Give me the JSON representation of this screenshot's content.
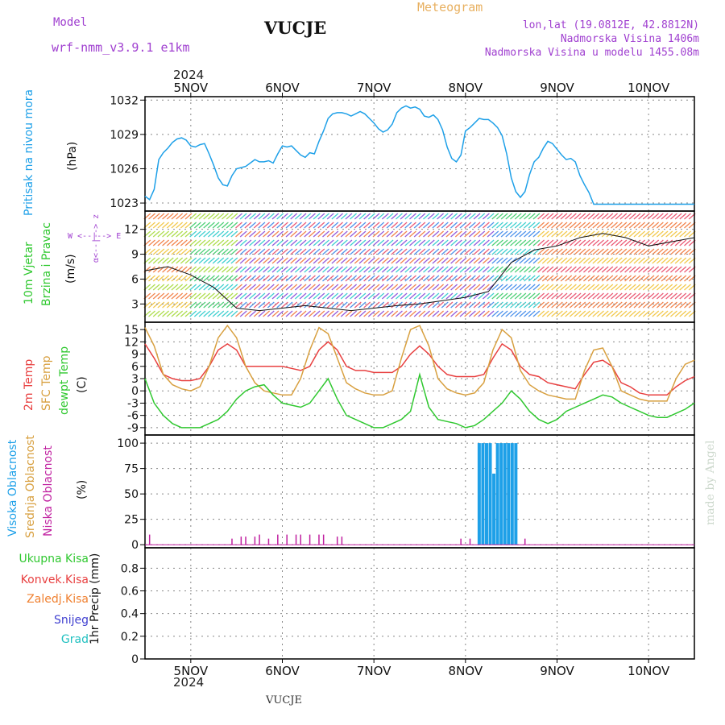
{
  "header": {
    "meteogram": "Meteogram",
    "model_label": "Model",
    "model_name": "wrf-nmm_v3.9.1  e1km",
    "station": "VUCJE",
    "lonlat": "lon,lat (19.0812E, 42.8812N)",
    "elevation": "Nadmorska Visina 1406m",
    "model_elevation": "Nadmorska Visina u modelu 1455.08m",
    "year": "2024",
    "credit": "made by Angel",
    "footer_station": "VUCJE"
  },
  "x_ticks": [
    "5NOV",
    "6NOV",
    "7NOV",
    "8NOV",
    "9NOV",
    "10NOV"
  ],
  "axis_labels": {
    "pressure_title": "Pritisak na nivou mora",
    "pressure_unit": "(hPa)",
    "wind_title1": "10m Vjetar",
    "wind_title2": "Brzina i Pravac",
    "wind_unit": "(m/s)",
    "compass_ns": "α<--|--> z",
    "compass_we": "W <--|--> E",
    "temp_t2": "2m Temp",
    "temp_sfc": "SFC Temp",
    "temp_dew": "dewpt Temp",
    "temp_unit": "(C)",
    "cloud_high": "Visoka Oblacnost",
    "cloud_mid": "Srednja Oblacnost",
    "cloud_low": "Niska Oblacnost",
    "cloud_unit": "(%)",
    "precip_label": "1hr Precip (mm)"
  },
  "precip_legend": [
    "Ukupna Kisa",
    "Konvek.Kisa",
    "Zaledj.Kisa",
    "Snijeg",
    "Grad"
  ],
  "colors": {
    "pressure": "#1ea0e8",
    "t2": "#e84040",
    "sfc": "#d8a040",
    "dew": "#30c830",
    "cloud_high": "#1ea0e8",
    "cloud_low": "#c020a0",
    "purple": "#a040d0",
    "legend": [
      "#30c830",
      "#e84040",
      "#f08030",
      "#4040d0",
      "#20c0c0"
    ]
  },
  "chart_data": [
    {
      "type": "line",
      "panel": "pressure",
      "ylabel": "(hPa)",
      "yticks": [
        1023,
        1026,
        1029,
        1032
      ],
      "ylim": [
        1022.3,
        1032.3
      ],
      "xlim": [
        -0.5,
        5.5
      ],
      "series": [
        {
          "key": "pressure",
          "x": [
            -0.5,
            -0.45,
            -0.4,
            -0.35,
            -0.3,
            -0.25,
            -0.2,
            -0.15,
            -0.1,
            -0.05,
            0.0,
            0.05,
            0.1,
            0.15,
            0.2,
            0.25,
            0.3,
            0.35,
            0.4,
            0.45,
            0.5,
            0.55,
            0.6,
            0.65,
            0.7,
            0.75,
            0.8,
            0.85,
            0.9,
            0.95,
            1.0,
            1.05,
            1.1,
            1.15,
            1.2,
            1.25,
            1.3,
            1.35,
            1.4,
            1.45,
            1.5,
            1.55,
            1.6,
            1.65,
            1.7,
            1.75,
            1.8,
            1.85,
            1.9,
            1.95,
            2.0,
            2.05,
            2.1,
            2.15,
            2.2,
            2.25,
            2.3,
            2.35,
            2.4,
            2.45,
            2.5,
            2.55,
            2.6,
            2.65,
            2.7,
            2.75,
            2.8,
            2.85,
            2.9,
            2.95,
            3.0,
            3.05,
            3.1,
            3.15,
            3.2,
            3.25,
            3.3,
            3.35,
            3.4,
            3.45,
            3.5,
            3.55,
            3.6,
            3.65,
            3.7,
            3.75,
            3.8,
            3.85,
            3.9,
            3.95,
            4.0,
            4.05,
            4.1,
            4.15,
            4.2,
            4.25,
            4.3,
            4.35,
            4.4,
            4.45,
            4.5,
            4.55,
            4.6,
            4.65,
            4.7,
            4.75,
            4.8,
            4.85,
            4.9,
            4.95,
            5.0,
            5.05,
            5.1,
            5.15,
            5.2,
            5.25,
            5.3,
            5.35,
            5.4,
            5.45,
            5.5
          ],
          "y": [
            1023.6,
            1023.3,
            1024.2,
            1026.8,
            1027.4,
            1027.8,
            1028.3,
            1028.6,
            1028.7,
            1028.5,
            1028.0,
            1027.9,
            1028.1,
            1028.2,
            1027.3,
            1026.3,
            1025.2,
            1024.6,
            1024.5,
            1025.4,
            1026.0,
            1026.1,
            1026.2,
            1026.5,
            1026.8,
            1026.6,
            1026.6,
            1026.7,
            1026.5,
            1027.3,
            1028.0,
            1027.9,
            1028.0,
            1027.6,
            1027.2,
            1027.0,
            1027.4,
            1027.3,
            1028.4,
            1029.3,
            1030.4,
            1030.8,
            1030.9,
            1030.9,
            1030.8,
            1030.6,
            1030.8,
            1031.0,
            1030.8,
            1030.4,
            1030.0,
            1029.5,
            1029.2,
            1029.4,
            1029.9,
            1030.9,
            1031.3,
            1031.5,
            1031.3,
            1031.4,
            1031.2,
            1030.6,
            1030.5,
            1030.7,
            1030.3,
            1029.4,
            1027.9,
            1026.9,
            1026.6,
            1027.2,
            1029.3,
            1029.6,
            1030.0,
            1030.4,
            1030.3,
            1030.3,
            1030.0,
            1029.6,
            1028.9,
            1027.3,
            1025.2,
            1024.0,
            1023.5,
            1024.0,
            1025.5,
            1026.6,
            1027.0,
            1027.8,
            1028.4,
            1028.2,
            1027.7,
            1027.2,
            1026.8,
            1026.9,
            1026.6,
            1025.4,
            1024.6,
            1023.9,
            1022.9,
            1022.9,
            1022.9,
            1022.9,
            1022.9,
            1022.9,
            1022.9,
            1022.9,
            1022.9,
            1022.9,
            1022.9,
            1022.9,
            1022.9,
            1022.9,
            1022.9,
            1022.9,
            1022.9,
            1022.9,
            1022.9,
            1022.9,
            1022.9,
            1022.9,
            1022.9
          ]
        }
      ]
    },
    {
      "type": "line",
      "panel": "wind",
      "ylabel": "(m/s)",
      "yticks": [
        3,
        6,
        9,
        12
      ],
      "ylim": [
        0.8,
        14.2
      ],
      "xlim": [
        -0.5,
        5.5
      ],
      "series": [
        {
          "key": "wind_speed",
          "x": [
            -0.5,
            -0.25,
            0.0,
            0.25,
            0.5,
            0.75,
            1.0,
            1.25,
            1.5,
            1.75,
            2.0,
            2.25,
            2.5,
            2.75,
            3.0,
            3.25,
            3.5,
            3.75,
            4.0,
            4.25,
            4.5,
            4.75,
            5.0,
            5.25,
            5.5
          ],
          "y": [
            7.0,
            7.5,
            6.5,
            5.0,
            2.5,
            2.2,
            2.5,
            2.8,
            2.5,
            2.2,
            2.5,
            2.8,
            3.0,
            3.4,
            3.8,
            4.5,
            8.0,
            9.5,
            10.0,
            11.0,
            11.5,
            11.0,
            10.0,
            10.5,
            11.0
          ]
        }
      ]
    },
    {
      "type": "line",
      "panel": "temperature",
      "ylabel": "(C)",
      "yticks": [
        -9,
        -6,
        -3,
        0,
        3,
        6,
        9,
        12,
        15
      ],
      "ylim": [
        -10.8,
        16.8
      ],
      "xlim": [
        -0.5,
        5.5
      ],
      "series": [
        {
          "key": "t2",
          "x": [
            -0.5,
            -0.4,
            -0.3,
            -0.2,
            -0.1,
            0.0,
            0.1,
            0.2,
            0.3,
            0.4,
            0.5,
            0.6,
            0.7,
            0.8,
            0.9,
            1.0,
            1.1,
            1.2,
            1.3,
            1.4,
            1.5,
            1.6,
            1.7,
            1.8,
            1.9,
            2.0,
            2.1,
            2.2,
            2.3,
            2.4,
            2.5,
            2.6,
            2.7,
            2.8,
            2.9,
            3.0,
            3.1,
            3.2,
            3.3,
            3.4,
            3.5,
            3.6,
            3.7,
            3.8,
            3.9,
            4.0,
            4.1,
            4.2,
            4.3,
            4.4,
            4.5,
            4.6,
            4.7,
            4.8,
            4.9,
            5.0,
            5.1,
            5.2,
            5.3,
            5.4,
            5.5
          ],
          "y": [
            11.5,
            8,
            4,
            3,
            2.5,
            2.5,
            3,
            6,
            10,
            11.5,
            10,
            6,
            6,
            6,
            6,
            6,
            5.5,
            5,
            6,
            10,
            12,
            10,
            6,
            5,
            5,
            4.5,
            4.5,
            4.5,
            6,
            9,
            11,
            9,
            6,
            4,
            3.5,
            3.5,
            3.5,
            4,
            8,
            11.5,
            10,
            6,
            4,
            3.5,
            2,
            1.5,
            1,
            0.5,
            4,
            7,
            7.5,
            6,
            2,
            1,
            -0.5,
            -1,
            -1,
            -1,
            1,
            2.5,
            3.5
          ]
        },
        {
          "key": "sfc",
          "x": [
            -0.5,
            -0.4,
            -0.3,
            -0.2,
            -0.1,
            0.0,
            0.1,
            0.2,
            0.3,
            0.4,
            0.5,
            0.6,
            0.7,
            0.8,
            0.9,
            1.0,
            1.1,
            1.2,
            1.3,
            1.4,
            1.5,
            1.6,
            1.7,
            1.8,
            1.9,
            2.0,
            2.1,
            2.2,
            2.3,
            2.4,
            2.5,
            2.6,
            2.7,
            2.8,
            2.9,
            3.0,
            3.1,
            3.2,
            3.3,
            3.4,
            3.5,
            3.6,
            3.7,
            3.8,
            3.9,
            4.0,
            4.1,
            4.2,
            4.3,
            4.4,
            4.5,
            4.6,
            4.7,
            4.8,
            4.9,
            5.0,
            5.1,
            5.2,
            5.3,
            5.4,
            5.5
          ],
          "y": [
            15.5,
            11,
            4,
            1.5,
            0.5,
            0,
            1,
            6,
            13,
            16,
            13,
            6,
            2,
            0,
            -0.5,
            -1,
            -1,
            3,
            10,
            15.5,
            14,
            8,
            2,
            0.5,
            -0.5,
            -1,
            -1,
            0,
            8,
            15,
            16,
            11,
            3,
            0.5,
            -0.5,
            -1,
            -0.5,
            2,
            10,
            15,
            13,
            5,
            1.5,
            0,
            -1,
            -1.5,
            -2,
            -2,
            5,
            10,
            10.5,
            6,
            0,
            -1,
            -2,
            -2.5,
            -2.5,
            -2.5,
            3,
            6.5,
            7.5
          ]
        },
        {
          "key": "dew",
          "x": [
            -0.5,
            -0.4,
            -0.3,
            -0.2,
            -0.1,
            0.0,
            0.1,
            0.2,
            0.3,
            0.4,
            0.5,
            0.6,
            0.7,
            0.8,
            0.9,
            1.0,
            1.1,
            1.2,
            1.3,
            1.4,
            1.5,
            1.6,
            1.7,
            1.8,
            1.9,
            2.0,
            2.1,
            2.2,
            2.3,
            2.4,
            2.5,
            2.6,
            2.7,
            2.8,
            2.9,
            3.0,
            3.1,
            3.2,
            3.3,
            3.4,
            3.5,
            3.6,
            3.7,
            3.8,
            3.9,
            4.0,
            4.1,
            4.2,
            4.3,
            4.4,
            4.5,
            4.6,
            4.7,
            4.8,
            4.9,
            5.0,
            5.1,
            5.2,
            5.3,
            5.4,
            5.5
          ],
          "y": [
            3,
            -3,
            -6,
            -8,
            -9,
            -9,
            -9,
            -8,
            -7,
            -5,
            -2,
            0,
            1,
            1.5,
            -1,
            -3,
            -3.5,
            -4,
            -3,
            0,
            3,
            -2,
            -6,
            -7,
            -8,
            -9,
            -9,
            -8,
            -7,
            -5,
            4,
            -4,
            -7,
            -7.5,
            -8,
            -9,
            -8.5,
            -7,
            -5,
            -3,
            0,
            -2,
            -5,
            -7,
            -8,
            -7,
            -5,
            -4,
            -3,
            -2,
            -1,
            -1.5,
            -3,
            -4,
            -5,
            -6,
            -6.5,
            -6.5,
            -5.5,
            -4.5,
            -3
          ]
        }
      ]
    },
    {
      "type": "bar",
      "panel": "cloud",
      "ylabel": "(%)",
      "yticks": [
        0,
        25,
        50,
        75,
        100
      ],
      "ylim": [
        -3,
        108
      ],
      "xlim": [
        -0.5,
        5.5
      ],
      "series": [
        {
          "key": "cloud_high",
          "x": [
            3.15,
            3.19,
            3.23,
            3.27,
            3.31,
            3.35,
            3.39,
            3.43,
            3.47,
            3.51,
            3.55
          ],
          "values": [
            100,
            100,
            100,
            100,
            70,
            100,
            100,
            100,
            100,
            100,
            100
          ]
        },
        {
          "key": "cloud_low",
          "x": [
            -0.45,
            0.45,
            0.55,
            0.6,
            0.7,
            0.75,
            0.85,
            0.95,
            1.05,
            1.15,
            1.2,
            1.3,
            1.4,
            1.45,
            1.6,
            1.65,
            2.95,
            3.05,
            3.65
          ],
          "values": [
            10,
            6,
            8,
            8,
            8,
            10,
            6,
            10,
            10,
            10,
            10,
            10,
            10,
            10,
            8,
            8,
            6,
            6,
            6
          ]
        }
      ]
    },
    {
      "type": "bar",
      "panel": "precip",
      "ylabel": "1hr Precip (mm)",
      "yticks": [
        0,
        0.2,
        0.4,
        0.6,
        0.8
      ],
      "ylim": [
        0,
        0.98
      ],
      "xlim": [
        -0.5,
        5.5
      ],
      "series": []
    }
  ]
}
